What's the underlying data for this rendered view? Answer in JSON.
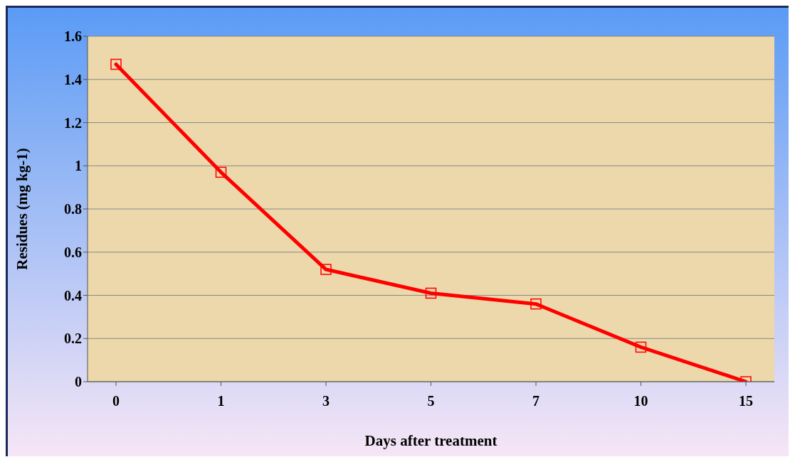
{
  "chart_data": {
    "type": "line",
    "xlabel": "Days after treatment",
    "ylabel": "Residues (mg kg-1)",
    "categories": [
      "0",
      "1",
      "3",
      "5",
      "7",
      "10",
      "15"
    ],
    "series": [
      {
        "color": "#ff0000",
        "values": [
          1.47,
          0.97,
          0.52,
          0.41,
          0.36,
          0.16,
          0
        ]
      }
    ],
    "ylim": [
      0,
      1.6
    ],
    "yticks": [
      0,
      0.2,
      0.4,
      0.6,
      0.8,
      1,
      1.2,
      1.4,
      1.6
    ],
    "grid": "y",
    "marker": "square",
    "line_style": "solid"
  }
}
